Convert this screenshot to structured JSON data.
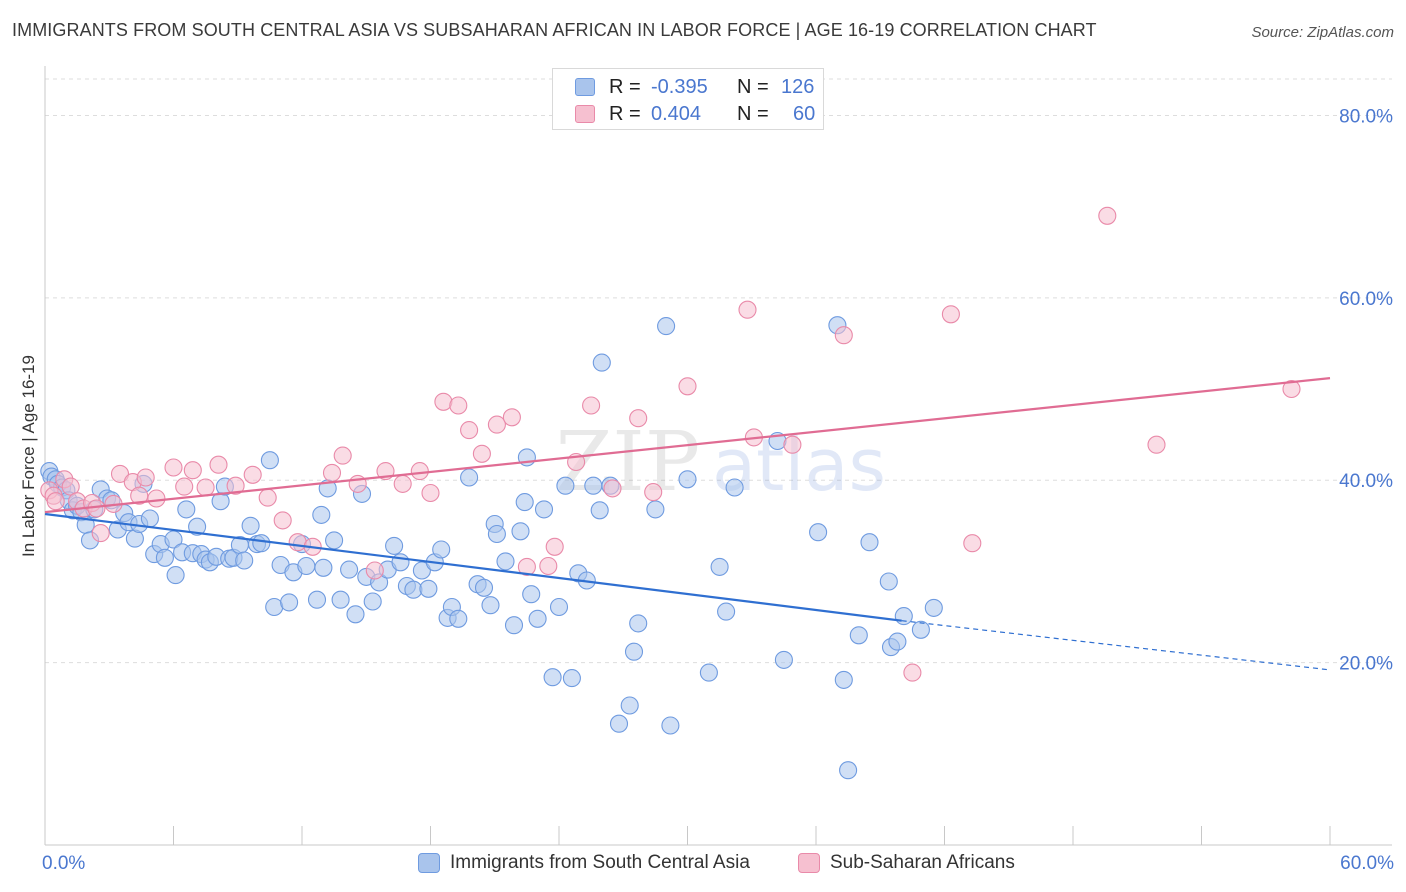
{
  "header": {
    "title": "IMMIGRANTS FROM SOUTH CENTRAL ASIA VS SUBSAHARAN AFRICAN IN LABOR FORCE | AGE 16-19 CORRELATION CHART",
    "source": "Source: ZipAtlas.com"
  },
  "legend_top": {
    "rows": [
      {
        "r_label": "R =",
        "r_value": "-0.395",
        "n_label": "N =",
        "n_value": "126"
      },
      {
        "r_label": "R =",
        "r_value": "0.404",
        "n_label": "N =",
        "n_value": "60"
      }
    ]
  },
  "legend_bottom": {
    "series1": "Immigrants from South Central Asia",
    "series2": "Sub-Saharan Africans"
  },
  "x_axis": {
    "min_label": "0.0%",
    "max_label": "60.0%"
  },
  "watermark": {
    "part1": "ZIP",
    "part2": "atlas"
  },
  "colors": {
    "blue_fill": "#a9c4ec",
    "blue_stroke": "#6f9be0",
    "blue_line": "#2f6fd1",
    "pink_fill": "#f6c0d0",
    "pink_stroke": "#e98aa9",
    "pink_line": "#e06c93",
    "tick_text": "#4a77cf",
    "grid": "#dddddd"
  },
  "chart_data": {
    "type": "scatter",
    "title": "IMMIGRANTS FROM SOUTH CENTRAL ASIA VS SUBSAHARAN AFRICAN IN LABOR FORCE | AGE 16-19 CORRELATION CHART",
    "xlabel": "",
    "ylabel": "In Labor Force | Age 16-19",
    "xlim": [
      0,
      60
    ],
    "ylim": [
      0,
      84
    ],
    "y_ticks": [
      20,
      40,
      60,
      80
    ],
    "y_tick_labels": [
      "20.0%",
      "40.0%",
      "60.0%",
      "80.0%"
    ],
    "grid": true,
    "legend_placement": "top-center",
    "series": [
      {
        "name": "Immigrants from South Central Asia",
        "r": -0.395,
        "n": 126,
        "trend": {
          "x0": 0,
          "y0": 36.3,
          "x1": 40,
          "y1": 24.6,
          "dashed_to_x": 60,
          "dashed_y": 19.2
        },
        "points": [
          [
            0.2,
            41.0
          ],
          [
            0.3,
            40.4
          ],
          [
            0.5,
            40.1
          ],
          [
            0.6,
            39.6
          ],
          [
            0.8,
            39.2
          ],
          [
            1.0,
            38.9
          ],
          [
            1.1,
            37.8
          ],
          [
            1.3,
            36.7
          ],
          [
            1.5,
            37.2
          ],
          [
            1.7,
            36.5
          ],
          [
            1.9,
            35.1
          ],
          [
            2.1,
            33.4
          ],
          [
            2.3,
            36.8
          ],
          [
            2.6,
            39.0
          ],
          [
            2.9,
            38.0
          ],
          [
            3.1,
            37.8
          ],
          [
            3.4,
            34.6
          ],
          [
            3.7,
            36.4
          ],
          [
            3.9,
            35.4
          ],
          [
            4.2,
            33.6
          ],
          [
            4.4,
            35.2
          ],
          [
            4.6,
            39.6
          ],
          [
            4.9,
            35.8
          ],
          [
            5.1,
            31.9
          ],
          [
            5.4,
            33.0
          ],
          [
            5.6,
            31.5
          ],
          [
            6.0,
            33.5
          ],
          [
            6.1,
            29.6
          ],
          [
            6.4,
            32.1
          ],
          [
            6.6,
            36.8
          ],
          [
            6.9,
            32.0
          ],
          [
            7.1,
            34.9
          ],
          [
            7.3,
            31.9
          ],
          [
            7.5,
            31.3
          ],
          [
            7.7,
            31.0
          ],
          [
            8.0,
            31.6
          ],
          [
            8.2,
            37.7
          ],
          [
            8.4,
            39.3
          ],
          [
            8.6,
            31.4
          ],
          [
            8.8,
            31.5
          ],
          [
            9.1,
            32.9
          ],
          [
            9.3,
            31.2
          ],
          [
            9.6,
            35.0
          ],
          [
            9.9,
            33.0
          ],
          [
            10.1,
            33.1
          ],
          [
            10.5,
            42.2
          ],
          [
            10.7,
            26.1
          ],
          [
            11.0,
            30.7
          ],
          [
            11.4,
            26.6
          ],
          [
            11.6,
            29.9
          ],
          [
            12.0,
            33.0
          ],
          [
            12.2,
            30.6
          ],
          [
            12.7,
            26.9
          ],
          [
            13.0,
            30.4
          ],
          [
            13.2,
            39.1
          ],
          [
            13.5,
            33.4
          ],
          [
            13.8,
            26.9
          ],
          [
            14.2,
            30.2
          ],
          [
            14.5,
            25.3
          ],
          [
            14.8,
            38.5
          ],
          [
            15.0,
            29.4
          ],
          [
            15.3,
            26.7
          ],
          [
            15.6,
            28.8
          ],
          [
            16.0,
            30.2
          ],
          [
            16.3,
            32.8
          ],
          [
            16.6,
            31.0
          ],
          [
            16.9,
            28.4
          ],
          [
            17.2,
            28.0
          ],
          [
            17.6,
            30.1
          ],
          [
            17.9,
            28.1
          ],
          [
            18.2,
            31.0
          ],
          [
            18.5,
            32.4
          ],
          [
            18.8,
            24.9
          ],
          [
            19.0,
            26.1
          ],
          [
            19.3,
            24.8
          ],
          [
            19.8,
            40.3
          ],
          [
            20.2,
            28.6
          ],
          [
            20.5,
            28.2
          ],
          [
            20.8,
            26.3
          ],
          [
            21.0,
            35.2
          ],
          [
            21.1,
            34.1
          ],
          [
            21.5,
            31.1
          ],
          [
            21.9,
            24.1
          ],
          [
            22.2,
            34.4
          ],
          [
            22.4,
            37.6
          ],
          [
            22.5,
            42.5
          ],
          [
            22.7,
            27.5
          ],
          [
            23.0,
            24.8
          ],
          [
            23.3,
            36.8
          ],
          [
            23.7,
            18.4
          ],
          [
            24.0,
            26.1
          ],
          [
            24.3,
            39.4
          ],
          [
            24.6,
            18.3
          ],
          [
            24.9,
            29.8
          ],
          [
            25.3,
            29.0
          ],
          [
            25.6,
            39.4
          ],
          [
            25.9,
            36.7
          ],
          [
            26.0,
            52.9
          ],
          [
            26.4,
            39.4
          ],
          [
            26.8,
            13.3
          ],
          [
            27.3,
            15.3
          ],
          [
            27.5,
            21.2
          ],
          [
            27.7,
            24.3
          ],
          [
            29.0,
            56.9
          ],
          [
            29.2,
            13.1
          ],
          [
            30.0,
            40.1
          ],
          [
            31.0,
            18.9
          ],
          [
            31.8,
            25.6
          ],
          [
            32.2,
            39.2
          ],
          [
            34.2,
            44.3
          ],
          [
            34.5,
            20.3
          ],
          [
            36.1,
            34.3
          ],
          [
            37.0,
            57.0
          ],
          [
            37.3,
            18.1
          ],
          [
            37.5,
            8.2
          ],
          [
            38.0,
            23.0
          ],
          [
            39.4,
            28.9
          ],
          [
            39.5,
            21.7
          ],
          [
            39.8,
            22.3
          ],
          [
            40.1,
            25.1
          ],
          [
            40.9,
            23.6
          ],
          [
            41.5,
            26.0
          ],
          [
            38.5,
            33.2
          ],
          [
            31.5,
            30.5
          ],
          [
            28.5,
            36.8
          ],
          [
            12.9,
            36.2
          ]
        ]
      },
      {
        "name": "Sub-Saharan Africans",
        "r": 0.404,
        "n": 60,
        "trend": {
          "x0": 0,
          "y0": 36.5,
          "x1": 60,
          "y1": 51.2
        },
        "points": [
          [
            0.2,
            38.9
          ],
          [
            0.4,
            38.3
          ],
          [
            0.5,
            37.7
          ],
          [
            0.9,
            40.1
          ],
          [
            1.2,
            39.3
          ],
          [
            1.5,
            37.7
          ],
          [
            1.8,
            36.9
          ],
          [
            2.2,
            37.5
          ],
          [
            2.4,
            36.9
          ],
          [
            2.6,
            34.2
          ],
          [
            3.2,
            37.4
          ],
          [
            3.5,
            40.7
          ],
          [
            4.1,
            39.8
          ],
          [
            4.4,
            38.3
          ],
          [
            4.7,
            40.3
          ],
          [
            5.2,
            38.0
          ],
          [
            6.0,
            41.4
          ],
          [
            6.5,
            39.3
          ],
          [
            6.9,
            41.1
          ],
          [
            7.5,
            39.2
          ],
          [
            8.1,
            41.7
          ],
          [
            8.9,
            39.4
          ],
          [
            9.7,
            40.6
          ],
          [
            10.4,
            38.1
          ],
          [
            11.1,
            35.6
          ],
          [
            11.8,
            33.2
          ],
          [
            12.5,
            32.7
          ],
          [
            13.4,
            40.8
          ],
          [
            13.9,
            42.7
          ],
          [
            14.6,
            39.6
          ],
          [
            15.4,
            30.1
          ],
          [
            15.9,
            41.0
          ],
          [
            16.7,
            39.6
          ],
          [
            17.5,
            41.0
          ],
          [
            18.0,
            38.6
          ],
          [
            18.6,
            48.6
          ],
          [
            19.3,
            48.2
          ],
          [
            19.8,
            45.5
          ],
          [
            20.4,
            42.9
          ],
          [
            21.1,
            46.1
          ],
          [
            21.8,
            46.9
          ],
          [
            22.5,
            30.5
          ],
          [
            23.5,
            30.6
          ],
          [
            23.8,
            32.7
          ],
          [
            24.8,
            42.0
          ],
          [
            25.5,
            48.2
          ],
          [
            26.5,
            39.1
          ],
          [
            27.7,
            46.8
          ],
          [
            28.4,
            38.7
          ],
          [
            30.0,
            50.3
          ],
          [
            32.8,
            58.7
          ],
          [
            33.1,
            44.7
          ],
          [
            34.9,
            43.9
          ],
          [
            37.3,
            55.9
          ],
          [
            40.5,
            18.9
          ],
          [
            42.3,
            58.2
          ],
          [
            43.3,
            33.1
          ],
          [
            49.6,
            69.0
          ],
          [
            51.9,
            43.9
          ],
          [
            58.2,
            50.0
          ]
        ]
      }
    ]
  }
}
